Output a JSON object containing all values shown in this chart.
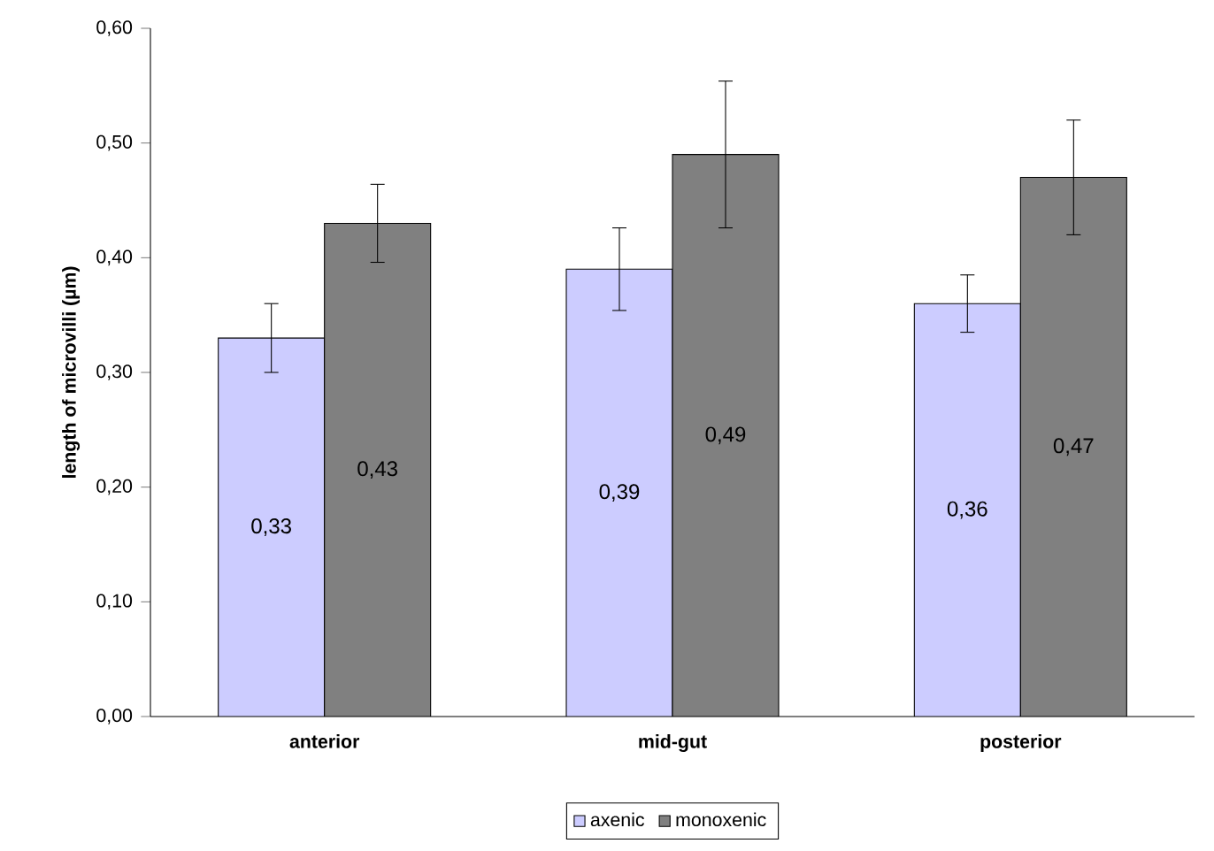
{
  "chart_data": {
    "type": "bar",
    "ylabel": "length of microvilli (µm)",
    "categories": [
      "anterior",
      "mid-gut",
      "posterior"
    ],
    "series": [
      {
        "name": "axenic",
        "color": "#ccccff",
        "values": [
          0.33,
          0.39,
          0.36
        ],
        "errors": [
          0.03,
          0.036,
          0.025
        ],
        "value_labels": [
          "0,33",
          "0,39",
          "0,36"
        ]
      },
      {
        "name": "monoxenic",
        "color": "#808080",
        "values": [
          0.43,
          0.49,
          0.47
        ],
        "errors": [
          0.034,
          0.064,
          0.05
        ],
        "value_labels": [
          "0,43",
          "0,49",
          "0,47"
        ]
      }
    ],
    "ylim": [
      0,
      0.6
    ],
    "yticks": [
      {
        "value": 0,
        "label": "0,00"
      },
      {
        "value": 0.1,
        "label": "0,10"
      },
      {
        "value": 0.2,
        "label": "0,20"
      },
      {
        "value": 0.3,
        "label": "0,30"
      },
      {
        "value": 0.4,
        "label": "0,40"
      },
      {
        "value": 0.5,
        "label": "0,50"
      },
      {
        "value": 0.6,
        "label": "0,60"
      }
    ],
    "legend": "bottom"
  }
}
